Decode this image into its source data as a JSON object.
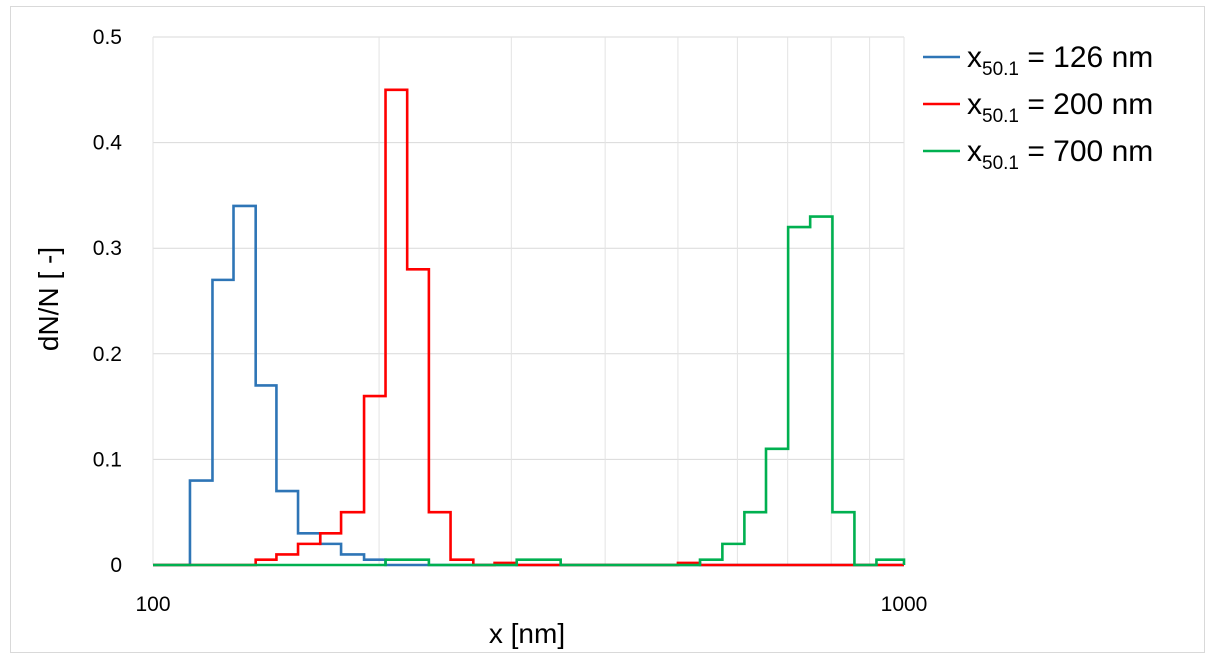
{
  "chart_data": {
    "type": "line",
    "step": true,
    "x_scale": "log",
    "xlim": [
      100,
      1000
    ],
    "ylim": [
      0,
      0.5
    ],
    "xlabel": "x [nm]",
    "ylabel": "dN/N [ -]",
    "xticks": [
      "100",
      "1000"
    ],
    "yticks": [
      "0",
      "0.1",
      "0.2",
      "0.3",
      "0.4",
      "0.5"
    ],
    "yticks_values": [
      0,
      0.1,
      0.2,
      0.3,
      0.4,
      0.5
    ],
    "grid": true,
    "legend_position": "top-right",
    "series": [
      {
        "name": "x50.1 = 126 nm",
        "label_main": "x",
        "label_sub": "50.1",
        "label_rest": " = 126 nm",
        "color": "#2e75b6",
        "x": [
          100,
          112,
          120,
          128,
          137,
          146,
          156,
          167,
          178,
          191,
          204,
          218,
          1000
        ],
        "y": [
          0,
          0.08,
          0.27,
          0.34,
          0.17,
          0.07,
          0.03,
          0.02,
          0.01,
          0.005,
          0,
          0,
          0
        ]
      },
      {
        "name": "x50.1 = 200 nm",
        "label_main": "x",
        "label_sub": "50.1",
        "label_rest": " = 200 nm",
        "color": "#ff0000",
        "x": [
          100,
          137,
          146,
          156,
          167,
          178,
          191,
          204,
          218,
          233,
          249,
          267,
          285,
          305,
          326,
          500,
          535,
          1000
        ],
        "y": [
          0,
          0.005,
          0.01,
          0.02,
          0.03,
          0.05,
          0.16,
          0.45,
          0.28,
          0.05,
          0.005,
          0,
          0.002,
          0,
          0,
          0.002,
          0,
          0
        ]
      },
      {
        "name": "x50.1 = 700 nm",
        "label_main": "x",
        "label_sub": "50.1",
        "label_rest": " = 700 nm",
        "color": "#00b050",
        "x": [
          100,
          204,
          233,
          305,
          349,
          535,
          573,
          613,
          655,
          701,
          750,
          803,
          859,
          919,
          1000
        ],
        "y": [
          0,
          0.005,
          0,
          0.005,
          0,
          0.005,
          0.02,
          0.05,
          0.11,
          0.32,
          0.33,
          0.05,
          0,
          0.005,
          0
        ]
      }
    ]
  }
}
